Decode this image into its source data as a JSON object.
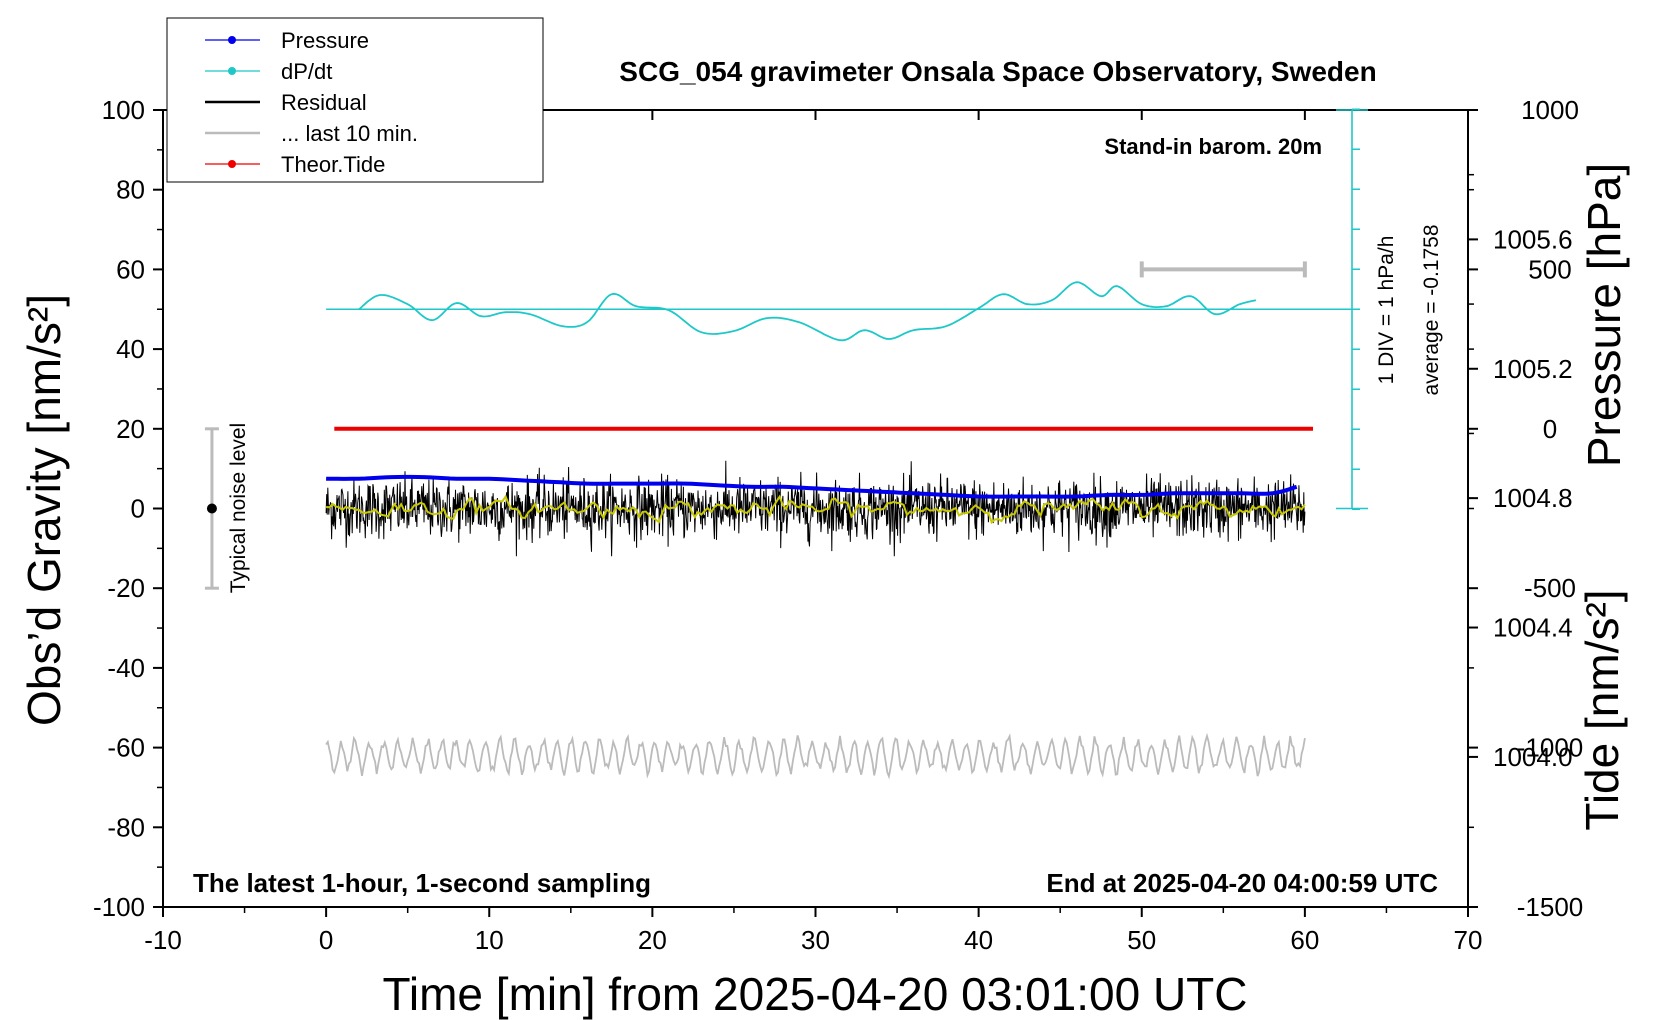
{
  "chart_data": {
    "type": "line",
    "title": "SCG_054 gravimeter Onsala Space Observatory, Sweden",
    "xlabel": "Time [min] from 2025-04-20 03:01:00 UTC",
    "ylabel_left": "Obs’d Gravity [nm/s²]",
    "ylabel_right_top": "Pressure [hPa]",
    "ylabel_right_bottom": "Tide [nm/s²]",
    "xlim": [
      -10,
      70
    ],
    "ylim": [
      -100,
      100
    ],
    "x_ticks": [
      "-10",
      "0",
      "10",
      "20",
      "30",
      "40",
      "50",
      "60",
      "70"
    ],
    "x_tick_values": [
      -10,
      0,
      10,
      20,
      30,
      40,
      50,
      60,
      70
    ],
    "y_ticks": [
      "-100",
      "-80",
      "-60",
      "-40",
      "-20",
      "0",
      "20",
      "40",
      "60",
      "80",
      "100"
    ],
    "y_tick_values": [
      -100,
      -80,
      -60,
      -40,
      -20,
      0,
      20,
      40,
      60,
      80,
      100
    ],
    "pressure_ticks": [
      "1004.0",
      "1004.4",
      "1004.8",
      "1005.2",
      "1005.6"
    ],
    "pressure_tick_values": [
      1004.0,
      1004.4,
      1004.8,
      1005.2,
      1005.6
    ],
    "pressure_range": [
      1003.536,
      1006.0
    ],
    "tide_ticks": [
      "-1500",
      "-1000",
      "-500",
      "0",
      "500",
      "1000"
    ],
    "tide_tick_values": [
      -1500,
      -1000,
      -500,
      0,
      500,
      1000
    ],
    "tide_range": [
      -1500,
      1000
    ],
    "legend": [
      {
        "label": "Pressure",
        "color": "#0000ee",
        "style": "line-dot"
      },
      {
        "label": "dP/dt",
        "color": "#1ec8c8",
        "style": "line-dot"
      },
      {
        "label": "Residual",
        "color": "#000000",
        "style": "line"
      },
      {
        "label": "... last 10 min.",
        "color": "#bbbbbb",
        "style": "line"
      },
      {
        "label": "Theor.Tide",
        "color": "#ee0000",
        "style": "line-dot"
      }
    ],
    "annotations": {
      "barometer": "Stand-in barom. 20m",
      "div_scale": "1 DIV = 1 hPa/h",
      "average": "average = -0.1758",
      "noise": "Typical noise level",
      "sampling": "The latest 1-hour, 1-second sampling",
      "end_time": "End at 2025-04-20 04:00:59 UTC"
    },
    "series": [
      {
        "name": "Pressure",
        "unit": "hPa",
        "color": "#0000ee",
        "x": [
          0,
          2,
          4,
          6,
          8,
          10,
          12,
          14,
          16,
          18,
          20,
          22,
          24,
          26,
          28,
          30,
          32,
          34,
          36,
          38,
          40,
          42,
          44,
          46,
          48,
          50,
          52,
          54,
          56,
          58,
          59.5
        ],
        "values": [
          1004.86,
          1004.86,
          1004.865,
          1004.865,
          1004.86,
          1004.86,
          1004.855,
          1004.85,
          1004.845,
          1004.845,
          1004.845,
          1004.845,
          1004.84,
          1004.835,
          1004.835,
          1004.83,
          1004.825,
          1004.82,
          1004.815,
          1004.81,
          1004.805,
          1004.805,
          1004.805,
          1004.805,
          1004.81,
          1004.81,
          1004.815,
          1004.815,
          1004.815,
          1004.815,
          1004.835
        ]
      },
      {
        "name": "dP/dt",
        "unit": "hPa/h",
        "color": "#1ec8c8",
        "baseline": -0.1758,
        "x": [
          2,
          3.3,
          5,
          6.5,
          8,
          9.5,
          11,
          12.5,
          14.5,
          16,
          17.5,
          19,
          21,
          23,
          25,
          27,
          29,
          31.5,
          33,
          34.5,
          36,
          38,
          40,
          41.5,
          43,
          44.5,
          46,
          47.5,
          48.5,
          50,
          51.5,
          53,
          54.5,
          56,
          57
        ],
        "values": [
          -0.18,
          0.18,
          -0.05,
          -0.45,
          -0.02,
          -0.35,
          -0.25,
          -0.3,
          -0.6,
          -0.5,
          0.2,
          -0.1,
          -0.2,
          -0.75,
          -0.72,
          -0.4,
          -0.5,
          -0.95,
          -0.7,
          -0.92,
          -0.7,
          -0.6,
          -0.15,
          0.2,
          -0.05,
          0.05,
          0.5,
          0.15,
          0.4,
          -0.05,
          -0.1,
          0.15,
          -0.3,
          -0.05,
          0.05
        ]
      },
      {
        "name": "Residual",
        "unit": "nm/s²",
        "color": "#000000",
        "x_range": [
          0,
          60
        ],
        "mean": 0,
        "amplitude": 5
      },
      {
        "name": "... last 10 min.",
        "unit": "nm/s²",
        "color": "#bbbbbb",
        "x_range": [
          0,
          60
        ],
        "mean": -62,
        "amplitude": 4
      },
      {
        "name": "Theor.Tide",
        "unit": "nm/s²",
        "color": "#ee0000",
        "x": [
          0.5,
          60.5
        ],
        "values": [
          0,
          0
        ]
      }
    ],
    "window_marker": {
      "x_start": 50,
      "x_end": 60,
      "tide_value": 500
    },
    "noise_bar": {
      "x": -7,
      "low": -20,
      "high": 20,
      "center": 0
    }
  }
}
